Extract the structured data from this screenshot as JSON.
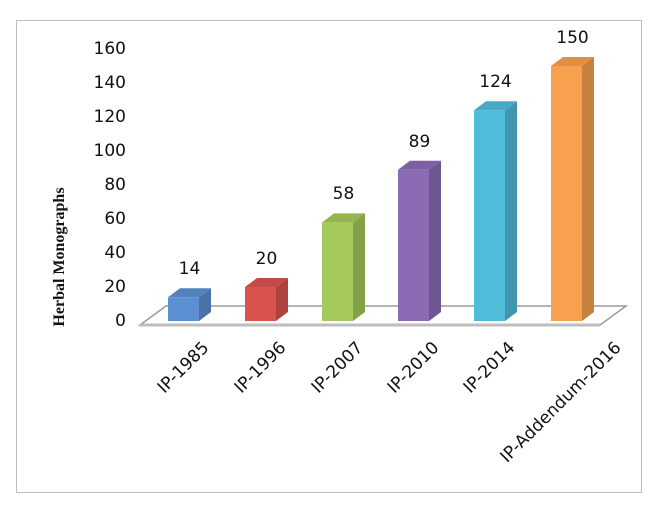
{
  "chart_data": {
    "type": "bar",
    "style": "3d-column",
    "title": "",
    "xlabel": "",
    "ylabel": "Herbal Monographs",
    "ylim": [
      0,
      160
    ],
    "yticks": [
      0,
      20,
      40,
      60,
      80,
      100,
      120,
      140,
      160
    ],
    "grid": false,
    "legend": null,
    "categories": [
      "IP-1985",
      "IP-1996",
      "IP-2007",
      "IP-2010",
      "IP-2014",
      "IP-Addendum-2016"
    ],
    "values": [
      14,
      20,
      58,
      89,
      124,
      150
    ],
    "data_labels": [
      "14",
      "20",
      "58",
      "89",
      "124",
      "150"
    ],
    "colors": [
      "#5b8fd1",
      "#d9534f",
      "#a5c95a",
      "#8a6bb4",
      "#4fbcd9",
      "#f7a14e"
    ]
  }
}
